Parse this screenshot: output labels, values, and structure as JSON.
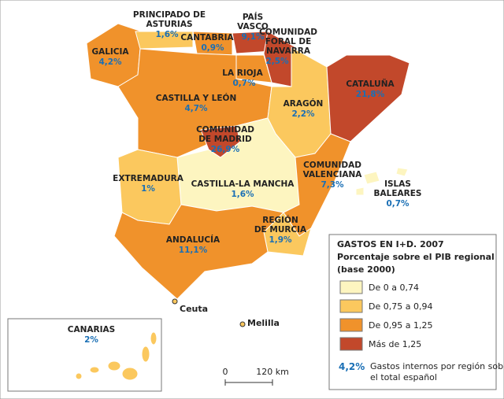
{
  "regions": [
    {
      "name": [
        "PRINCIPADO DE",
        "ASTURIAS"
      ],
      "value": "1,6%"
    },
    {
      "name": [
        "PAÍS",
        "VASCO"
      ],
      "value": "9,1%"
    },
    {
      "name": [
        "CANTABRIA"
      ],
      "value": "0,9%"
    },
    {
      "name": [
        "COMUNIDAD",
        "FORAL DE",
        "NAVARRA"
      ],
      "value": "2,5%"
    },
    {
      "name": [
        "GALICIA"
      ],
      "value": "4,2%"
    },
    {
      "name": [
        "LA RIOJA"
      ],
      "value": "0,7%"
    },
    {
      "name": [
        "CATALUÑA"
      ],
      "value": "21,8%"
    },
    {
      "name": [
        "CASTILLA Y LEÓN"
      ],
      "value": "4,7%"
    },
    {
      "name": [
        "ARAGÓN"
      ],
      "value": "2,2%"
    },
    {
      "name": [
        "COMUNIDAD",
        "DE MADRID"
      ],
      "value": "26,9%"
    },
    {
      "name": [
        "COMUNIDAD",
        "VALENCIANA"
      ],
      "value": "7,3%"
    },
    {
      "name": [
        "EXTREMADURA"
      ],
      "value": "1%"
    },
    {
      "name": [
        "CASTILLA-LA MANCHA"
      ],
      "value": "1,6%"
    },
    {
      "name": [
        "ISLAS",
        "BALEARES"
      ],
      "value": "0,7%"
    },
    {
      "name": [
        "REGIÓN",
        "DE MURCIA"
      ],
      "value": "1,9%"
    },
    {
      "name": [
        "ANDALUCÍA"
      ],
      "value": "11,1%"
    },
    {
      "name": [
        "CANARIAS"
      ],
      "value": "2%"
    }
  ],
  "cities": [
    "Ceuta",
    "Melilla"
  ],
  "scale": {
    "zero": "0",
    "distance": "120 km"
  },
  "legend": {
    "title": "GASTOS EN I+D. 2007",
    "subtitle": [
      "Porcentaje sobre el PIB regional",
      "(base 2000)"
    ],
    "items": [
      {
        "label": "De 0 a 0,74",
        "color": "#fdf5c0"
      },
      {
        "label": "De 0,75 a 0,94",
        "color": "#fbc85e"
      },
      {
        "label": "De 0,95 a 1,25",
        "color": "#f0922b"
      },
      {
        "label": "Más de 1,25",
        "color": "#c2482b"
      }
    ],
    "note_value": "4,2%",
    "note_text": [
      "Gastos internos por región sobre",
      "el total español"
    ]
  }
}
